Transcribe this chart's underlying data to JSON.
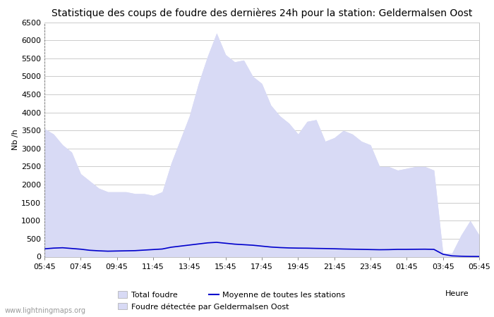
{
  "title": "Statistique des coups de foudre des dernières 24h pour la station: Geldermalsen Oost",
  "xlabel": "Heure",
  "ylabel": "Nb /h",
  "ylim": [
    0,
    6500
  ],
  "yticks": [
    0,
    500,
    1000,
    1500,
    2000,
    2500,
    3000,
    3500,
    4000,
    4500,
    5000,
    5500,
    6000,
    6500
  ],
  "time_labels": [
    "05:45",
    "07:45",
    "09:45",
    "11:45",
    "13:45",
    "15:45",
    "17:45",
    "19:45",
    "21:45",
    "23:45",
    "01:45",
    "03:45",
    "05:45"
  ],
  "x_indices": [
    0,
    4,
    8,
    12,
    16,
    20,
    24,
    28,
    32,
    36,
    40,
    44,
    48
  ],
  "bg_color": "#ffffff",
  "fill_color_total": "#d8daf5",
  "fill_color_detected": "#d8daf5",
  "line_color": "#0000cc",
  "grid_color": "#cccccc",
  "total_foudre": [
    3550,
    3400,
    3100,
    2900,
    2300,
    2100,
    1900,
    1800,
    1800,
    1800,
    1750,
    1750,
    1700,
    1800,
    2600,
    3250,
    3900,
    4800,
    5550,
    6200,
    5600,
    5400,
    5450,
    5000,
    4800,
    4200,
    3900,
    3700,
    3400,
    3750,
    3800,
    3200,
    3300,
    3500,
    3400,
    3200,
    3100,
    2500,
    2500,
    2400,
    2450,
    2500,
    2500,
    2400,
    100,
    100,
    600,
    1000,
    600
  ],
  "moyenne": [
    220,
    240,
    250,
    230,
    210,
    180,
    165,
    155,
    160,
    165,
    170,
    185,
    200,
    215,
    265,
    295,
    325,
    355,
    385,
    400,
    375,
    350,
    335,
    320,
    295,
    270,
    255,
    245,
    240,
    238,
    232,
    228,
    222,
    215,
    210,
    205,
    200,
    195,
    198,
    205,
    205,
    208,
    210,
    205,
    70,
    25,
    15,
    10,
    8
  ],
  "watermark": "www.lightningmaps.org",
  "legend_total": "Total foudre",
  "legend_moyenne": "Moyenne de toutes les stations",
  "legend_detected": "Foudre détectée par Geldermalsen Oost",
  "title_fontsize": 10,
  "axis_fontsize": 8,
  "tick_fontsize": 8
}
